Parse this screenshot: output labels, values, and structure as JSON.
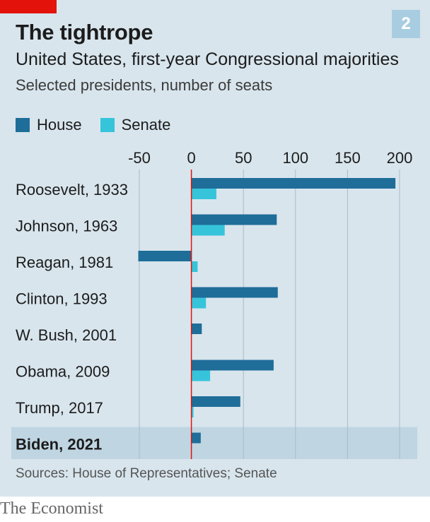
{
  "badge": "2",
  "title": "The tightrope",
  "subtitle": "United States, first-year Congressional majorities",
  "subsubtitle": "Selected presidents, number of seats",
  "source": "Sources: House of Representatives; Senate",
  "logo": "The Economist",
  "colors": {
    "house": "#1f6d99",
    "senate": "#36c4db",
    "zero_line": "#e3120b",
    "highlight_row": "#bfd5e2",
    "gridline": "#a9bcc8",
    "background": "#d8e5ed"
  },
  "chart_data": {
    "type": "bar",
    "orientation": "horizontal",
    "categories": [
      "Roosevelt, 1933",
      "Johnson, 1963",
      "Reagan, 1981",
      "Clinton, 1993",
      "W. Bush, 2001",
      "Obama, 2009",
      "Trump, 2017",
      "Biden, 2021"
    ],
    "highlighted_category": "Biden, 2021",
    "series": [
      {
        "name": "House",
        "values": [
          196,
          82,
          -51,
          83,
          10,
          79,
          47,
          9
        ]
      },
      {
        "name": "Senate",
        "values": [
          24,
          32,
          6,
          14,
          0,
          18,
          2,
          0
        ]
      }
    ],
    "xlim": [
      -50,
      200
    ],
    "xticks": [
      "-50",
      "0",
      "50",
      "100",
      "150",
      "200"
    ],
    "xtick_values": [
      -50,
      0,
      50,
      100,
      150,
      200
    ],
    "grid": true,
    "legend_position": "top-left"
  }
}
